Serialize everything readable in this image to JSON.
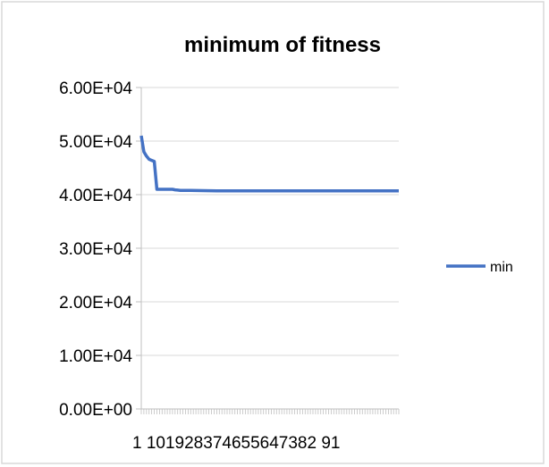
{
  "chart_data": {
    "type": "line",
    "title": "minimum of fitness",
    "xlabel": "",
    "ylabel": "",
    "ylim": [
      0,
      60000
    ],
    "yticks": [
      0,
      10000,
      20000,
      30000,
      40000,
      50000,
      60000
    ],
    "ytick_labels": [
      "0.00E+00",
      "1.00E+04",
      "2.00E+04",
      "3.00E+04",
      "4.00E+04",
      "5.00E+04",
      "6.00E+04"
    ],
    "x_range": [
      1,
      100
    ],
    "x_tick_label_text": "1 101928374655647382 91",
    "grid": "horizontal",
    "legend": "right",
    "series": [
      {
        "name": "min",
        "color": "#4472c4",
        "points": [
          [
            1,
            51000
          ],
          [
            2,
            48000
          ],
          [
            3,
            47200
          ],
          [
            4,
            46600
          ],
          [
            5,
            46400
          ],
          [
            6,
            46200
          ],
          [
            7,
            41000
          ],
          [
            8,
            41000
          ],
          [
            9,
            41000
          ],
          [
            10,
            41000
          ],
          [
            11,
            41000
          ],
          [
            12,
            41000
          ],
          [
            13,
            41000
          ],
          [
            14,
            40900
          ],
          [
            15,
            40850
          ],
          [
            16,
            40800
          ],
          [
            18,
            40800
          ],
          [
            20,
            40800
          ],
          [
            25,
            40750
          ],
          [
            30,
            40700
          ],
          [
            40,
            40700
          ],
          [
            50,
            40700
          ],
          [
            60,
            40700
          ],
          [
            70,
            40700
          ],
          [
            80,
            40700
          ],
          [
            90,
            40700
          ],
          [
            100,
            40700
          ]
        ]
      }
    ]
  }
}
